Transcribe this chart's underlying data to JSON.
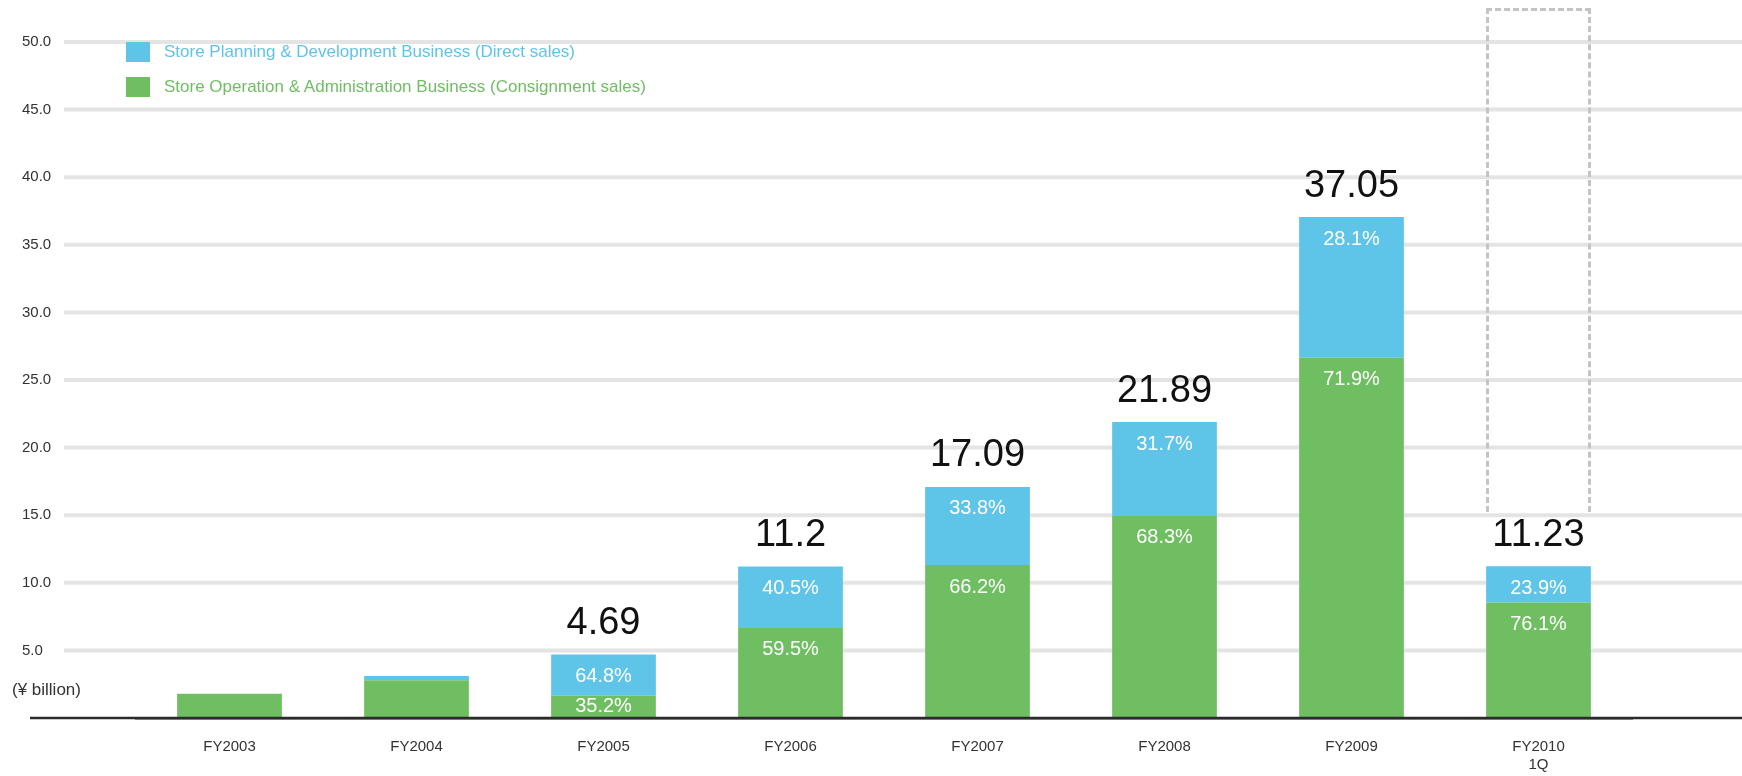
{
  "chart_data": {
    "type": "bar",
    "stacked": true,
    "ylabel": "(¥ billion)",
    "categories": [
      "FY2003",
      "FY2004",
      "FY2005",
      "FY2006",
      "FY2007",
      "FY2008",
      "FY2009",
      "FY2010\n1Q"
    ],
    "series": [
      {
        "name": "Store Operation & Administration Business (Consignment sales)",
        "color": "#6fbf62",
        "values": [
          1.8,
          2.8,
          1.65,
          6.66,
          11.31,
          14.95,
          26.64,
          8.55
        ]
      },
      {
        "name": "Store Planning & Development Business (Direct sales)",
        "color": "#5ec4e8",
        "values": [
          null,
          0.3,
          3.04,
          4.54,
          5.78,
          6.94,
          10.41,
          2.68
        ]
      }
    ],
    "totals": [
      null,
      null,
      "4.69",
      "11.2",
      "17.09",
      "21.89",
      "37.05",
      "11.23"
    ],
    "annotations": [
      {
        "text": "35.2%",
        "x": "FY2005",
        "y": 1.65
      },
      {
        "text": "64.8%",
        "x": "FY2005",
        "y": 4.69
      },
      {
        "text": "59.5%",
        "x": "FY2006",
        "y": 6.66
      },
      {
        "text": "40.5%",
        "x": "FY2006",
        "y": 11.2
      },
      {
        "text": "66.2%",
        "x": "FY2007",
        "y": 11.31
      },
      {
        "text": "33.8%",
        "x": "FY2007",
        "y": 17.09
      },
      {
        "text": "68.3%",
        "x": "FY2008",
        "y": 14.95
      },
      {
        "text": "31.7%",
        "x": "FY2008",
        "y": 21.89
      },
      {
        "text": "71.9%",
        "x": "FY2009",
        "y": 26.64
      },
      {
        "text": "28.1%",
        "x": "FY2009",
        "y": 37.05
      },
      {
        "text": "76.1%",
        "x": "FY2010\n1Q",
        "y": 8.55
      },
      {
        "text": "23.9%",
        "x": "FY2010\n1Q",
        "y": 11.23
      }
    ],
    "ylim": [
      0,
      50
    ],
    "yticks": [
      {
        "value": 5,
        "label": "5.0"
      },
      {
        "value": 10,
        "label": "10.0"
      },
      {
        "value": 15,
        "label": "15.0"
      },
      {
        "value": 20,
        "label": "20.0"
      },
      {
        "value": 25,
        "label": "25.0"
      },
      {
        "value": 30,
        "label": "30.0"
      },
      {
        "value": 35,
        "label": "35.0"
      },
      {
        "value": 40,
        "label": "40.0"
      },
      {
        "value": 45,
        "label": "45.0"
      },
      {
        "value": 50,
        "label": "50.0"
      }
    ],
    "grid": "y",
    "legend": "top left"
  }
}
